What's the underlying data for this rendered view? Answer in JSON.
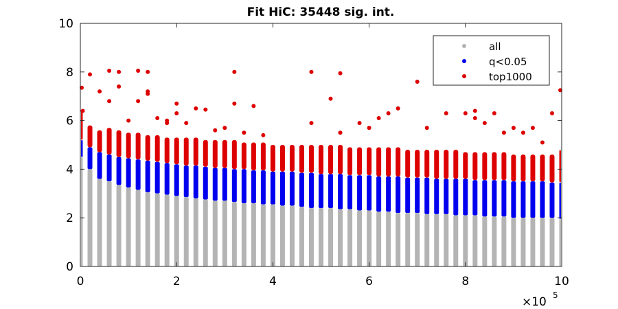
{
  "chart_data": {
    "type": "scatter",
    "title": "Fit HiC: 35448 sig. int.",
    "xlabel": "",
    "ylabel": "",
    "xlim": [
      0,
      10
    ],
    "ylim": [
      0,
      10
    ],
    "x_multiplier_label": "×10",
    "x_multiplier_exponent": "5",
    "xticks": [
      0,
      2,
      4,
      6,
      8,
      10
    ],
    "yticks": [
      0,
      2,
      4,
      6,
      8,
      10
    ],
    "grid": false,
    "legend_position": "top-right",
    "columns": {
      "x": [
        0.0,
        0.2,
        0.4,
        0.6,
        0.8,
        1.0,
        1.2,
        1.4,
        1.6,
        1.8,
        2.0,
        2.2,
        2.4,
        2.6,
        2.8,
        3.0,
        3.2,
        3.4,
        3.6,
        3.8,
        4.0,
        4.2,
        4.4,
        4.6,
        4.8,
        5.0,
        5.2,
        5.4,
        5.6,
        5.8,
        6.0,
        6.2,
        6.4,
        6.6,
        6.8,
        7.0,
        7.2,
        7.4,
        7.6,
        7.8,
        8.0,
        8.2,
        8.4,
        8.6,
        8.8,
        9.0,
        9.2,
        9.4,
        9.6,
        9.8,
        10.0
      ],
      "all_max": [
        4.5,
        4.0,
        3.6,
        3.5,
        3.35,
        3.25,
        3.15,
        3.05,
        3.0,
        2.95,
        2.9,
        2.85,
        2.8,
        2.75,
        2.7,
        2.7,
        2.65,
        2.6,
        2.6,
        2.55,
        2.55,
        2.5,
        2.5,
        2.45,
        2.4,
        2.4,
        2.4,
        2.35,
        2.35,
        2.3,
        2.3,
        2.25,
        2.25,
        2.2,
        2.2,
        2.2,
        2.15,
        2.15,
        2.15,
        2.1,
        2.1,
        2.1,
        2.05,
        2.05,
        2.05,
        2.0,
        2.0,
        2.0,
        2.0,
        2.0,
        1.95
      ],
      "q_max": [
        5.2,
        4.9,
        4.7,
        4.6,
        4.5,
        4.45,
        4.4,
        4.35,
        4.3,
        4.25,
        4.2,
        4.15,
        4.15,
        4.1,
        4.05,
        4.05,
        4.0,
        4.0,
        3.95,
        3.95,
        3.9,
        3.9,
        3.9,
        3.85,
        3.85,
        3.8,
        3.8,
        3.8,
        3.75,
        3.75,
        3.75,
        3.7,
        3.7,
        3.7,
        3.65,
        3.65,
        3.65,
        3.6,
        3.6,
        3.6,
        3.6,
        3.55,
        3.55,
        3.55,
        3.55,
        3.5,
        3.5,
        3.5,
        3.5,
        3.45,
        3.45
      ],
      "top_max": [
        6.4,
        5.8,
        5.6,
        5.7,
        5.6,
        5.5,
        5.5,
        5.4,
        5.4,
        5.3,
        5.3,
        5.3,
        5.3,
        5.2,
        5.2,
        5.2,
        5.2,
        5.1,
        5.1,
        5.1,
        5.0,
        5.0,
        5.0,
        5.0,
        5.0,
        5.0,
        5.0,
        5.0,
        4.9,
        4.9,
        4.9,
        4.9,
        4.9,
        4.9,
        4.8,
        4.8,
        4.8,
        4.8,
        4.8,
        4.8,
        4.7,
        4.7,
        4.7,
        4.7,
        4.7,
        4.6,
        4.6,
        4.6,
        4.6,
        4.6,
        4.8
      ]
    },
    "top1000_outliers": [
      [
        0.0,
        7.35
      ],
      [
        0.05,
        6.4
      ],
      [
        0.2,
        7.9
      ],
      [
        0.4,
        7.2
      ],
      [
        0.6,
        8.05
      ],
      [
        0.6,
        6.8
      ],
      [
        0.8,
        8.0
      ],
      [
        0.8,
        7.4
      ],
      [
        1.0,
        6.0
      ],
      [
        1.2,
        8.05
      ],
      [
        1.2,
        6.8
      ],
      [
        1.4,
        8.0
      ],
      [
        1.4,
        7.2
      ],
      [
        1.4,
        7.1
      ],
      [
        1.6,
        6.1
      ],
      [
        1.8,
        6.0
      ],
      [
        1.8,
        5.9
      ],
      [
        2.0,
        6.7
      ],
      [
        2.0,
        6.3
      ],
      [
        2.2,
        5.9
      ],
      [
        2.4,
        6.5
      ],
      [
        2.6,
        6.45
      ],
      [
        2.8,
        5.6
      ],
      [
        3.0,
        5.7
      ],
      [
        3.2,
        8.0
      ],
      [
        3.2,
        6.7
      ],
      [
        3.4,
        5.5
      ],
      [
        3.6,
        6.6
      ],
      [
        3.8,
        5.4
      ],
      [
        4.8,
        8.0
      ],
      [
        4.8,
        5.9
      ],
      [
        5.2,
        6.9
      ],
      [
        5.4,
        7.95
      ],
      [
        5.4,
        5.5
      ],
      [
        5.8,
        5.9
      ],
      [
        6.0,
        5.7
      ],
      [
        6.2,
        6.1
      ],
      [
        6.4,
        6.3
      ],
      [
        6.6,
        6.5
      ],
      [
        7.0,
        7.6
      ],
      [
        7.2,
        5.7
      ],
      [
        7.6,
        6.3
      ],
      [
        8.0,
        6.3
      ],
      [
        8.2,
        6.4
      ],
      [
        8.2,
        6.1
      ],
      [
        8.4,
        5.9
      ],
      [
        8.6,
        6.3
      ],
      [
        8.8,
        5.5
      ],
      [
        9.0,
        5.7
      ],
      [
        9.2,
        5.5
      ],
      [
        9.4,
        5.7
      ],
      [
        9.6,
        5.1
      ],
      [
        9.8,
        6.3
      ],
      [
        10.0,
        7.25
      ]
    ],
    "series": [
      {
        "name": "all",
        "color": "#b4b4b4"
      },
      {
        "name": "q<0.05",
        "color": "#0000ee"
      },
      {
        "name": "top1000",
        "color": "#dd0000"
      }
    ]
  }
}
